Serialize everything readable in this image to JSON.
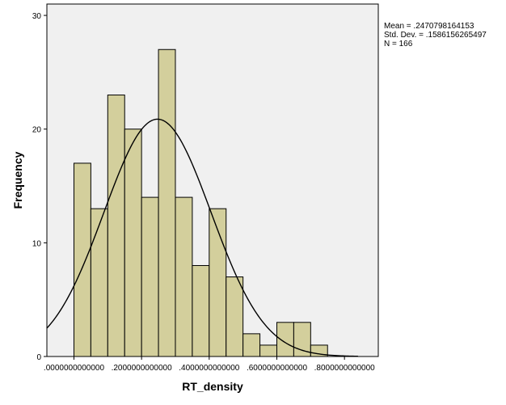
{
  "chart_data": {
    "type": "bar",
    "subtype": "histogram",
    "xlabel": "RT_density",
    "ylabel": "Frequency",
    "xlim": [
      -0.08,
      0.9
    ],
    "ylim": [
      0,
      31
    ],
    "x_ticks": [
      0.0,
      0.2,
      0.4,
      0.6,
      0.8
    ],
    "x_tick_labels": [
      ".0000000000000",
      ".2000000000000",
      ".4000000000000",
      ".6000000000000",
      ".8000000000000"
    ],
    "y_ticks": [
      0,
      10,
      20,
      30
    ],
    "y_tick_labels": [
      "0",
      "10",
      "20",
      "30"
    ],
    "bin_width": 0.05,
    "bins": [
      {
        "start": 0.0,
        "end": 0.05,
        "count": 17
      },
      {
        "start": 0.05,
        "end": 0.1,
        "count": 13
      },
      {
        "start": 0.1,
        "end": 0.15,
        "count": 23
      },
      {
        "start": 0.15,
        "end": 0.2,
        "count": 20
      },
      {
        "start": 0.2,
        "end": 0.25,
        "count": 14
      },
      {
        "start": 0.25,
        "end": 0.3,
        "count": 27
      },
      {
        "start": 0.3,
        "end": 0.35,
        "count": 14
      },
      {
        "start": 0.35,
        "end": 0.4,
        "count": 8
      },
      {
        "start": 0.4,
        "end": 0.45,
        "count": 13
      },
      {
        "start": 0.45,
        "end": 0.5,
        "count": 7
      },
      {
        "start": 0.5,
        "end": 0.55,
        "count": 2
      },
      {
        "start": 0.55,
        "end": 0.6,
        "count": 1
      },
      {
        "start": 0.6,
        "end": 0.65,
        "count": 3
      },
      {
        "start": 0.65,
        "end": 0.7,
        "count": 3
      },
      {
        "start": 0.7,
        "end": 0.75,
        "count": 1
      }
    ],
    "normal_curve": {
      "mean": 0.2470798164153,
      "std_dev": 0.1586156265497,
      "n": 166
    },
    "stats_lines": [
      "Mean = .2470798164153",
      "Std. Dev. = .1586156265497",
      "N = 166"
    ],
    "grid": false,
    "legend": "top-right",
    "colors": {
      "bar_fill": "#d3cf9c",
      "plot_background": "#f0f0f0",
      "outline": "#000000"
    }
  }
}
